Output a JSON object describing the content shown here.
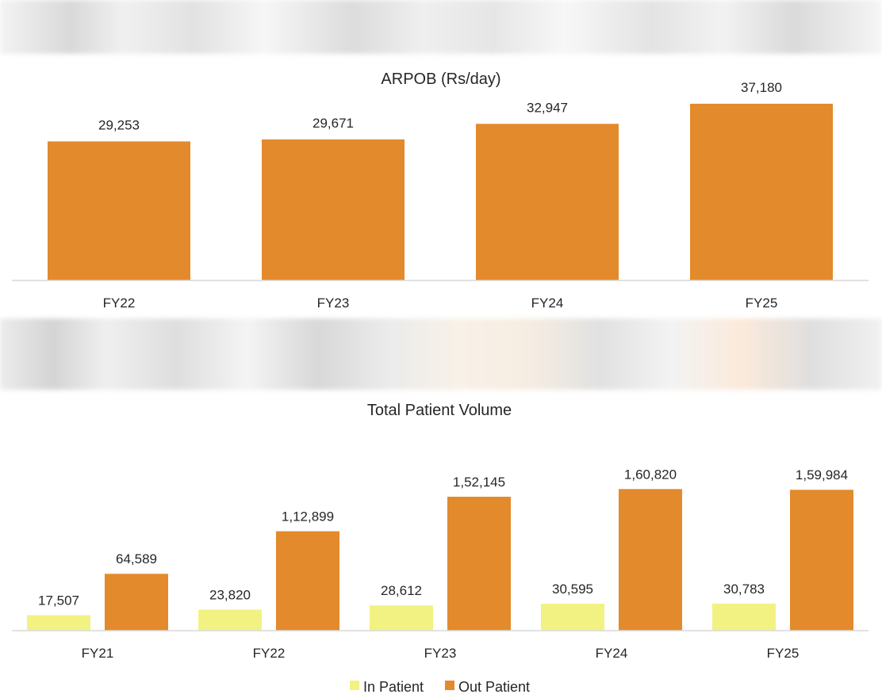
{
  "colors": {
    "orange": "#E38A2C",
    "yellow": "#F2F283",
    "axis": "#d9d9d9",
    "text": "#262626"
  },
  "chart_data": [
    {
      "type": "bar",
      "title": "ARPOB (Rs/day)",
      "categories": [
        "FY22",
        "FY23",
        "FY24",
        "FY25"
      ],
      "values": [
        29253,
        29671,
        32947,
        37180
      ],
      "value_labels": [
        "29,253",
        "29,671",
        "32,947",
        "37,180"
      ],
      "ylim": [
        0,
        40000
      ],
      "grid": false
    },
    {
      "type": "bar",
      "title": "Total Patient Volume",
      "categories": [
        "FY21",
        "FY22",
        "FY23",
        "FY24",
        "FY25"
      ],
      "series": [
        {
          "name": "In Patient",
          "values": [
            17507,
            23820,
            28612,
            30595,
            30783
          ],
          "value_labels": [
            "17,507",
            "23,820",
            "28,612",
            "30,595",
            "30,783"
          ]
        },
        {
          "name": "Out Patient",
          "values": [
            64589,
            112899,
            152145,
            160820,
            159984
          ],
          "value_labels": [
            "64,589",
            "1,12,899",
            "1,52,145",
            "1,60,820",
            "1,59,984"
          ]
        }
      ],
      "ylim": [
        0,
        180000
      ],
      "grid": false,
      "legend": "bottom-center"
    }
  ]
}
